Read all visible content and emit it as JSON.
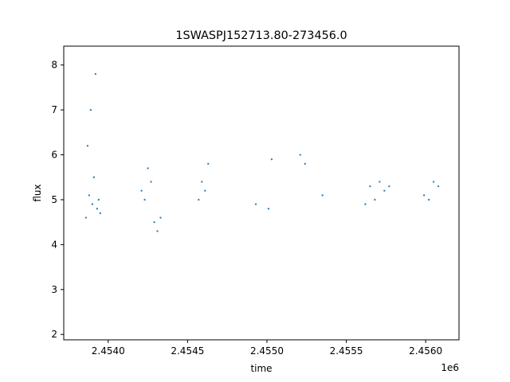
{
  "chart_data": {
    "type": "scatter",
    "title": "1SWASPJ152713.80-273456.0",
    "xlabel": "time",
    "ylabel": "flux",
    "x_offset_label": "1e6",
    "xlim": [
      2.45372,
      2.45621
    ],
    "ylim": [
      1.88,
      8.42
    ],
    "x_ticks": [
      2.454,
      2.4545,
      2.455,
      2.4555,
      2.456
    ],
    "x_tick_labels": [
      "2.4540",
      "2.4545",
      "2.4550",
      "2.4555",
      "2.4560"
    ],
    "y_ticks": [
      2,
      3,
      4,
      5,
      6,
      7,
      8
    ],
    "y_tick_labels": [
      "2",
      "3",
      "4",
      "5",
      "6",
      "7",
      "8"
    ],
    "grid": false,
    "marker_color": "#1f77b4",
    "series": [
      {
        "x": [
          2.45386,
          2.45387,
          2.45388,
          2.45389,
          2.4539,
          2.45391,
          2.45392,
          2.45393,
          2.45394,
          2.45395,
          2.45421,
          2.45423,
          2.45425,
          2.45427,
          2.45429,
          2.45431,
          2.45433,
          2.45457,
          2.45459,
          2.45461,
          2.45463,
          2.45493,
          2.45501,
          2.45503,
          2.45521,
          2.45524,
          2.45535,
          2.45562,
          2.45565,
          2.45568,
          2.45571,
          2.45574,
          2.45577,
          2.45599,
          2.45602,
          2.45605,
          2.45608
        ],
        "y": [
          4.6,
          6.2,
          5.1,
          7.0,
          4.9,
          5.5,
          7.8,
          4.8,
          5.0,
          4.7,
          5.2,
          5.0,
          5.7,
          5.4,
          4.5,
          4.3,
          4.6,
          5.0,
          5.4,
          5.2,
          5.8,
          4.9,
          4.8,
          5.9,
          6.0,
          5.8,
          5.1,
          4.9,
          5.3,
          5.0,
          5.4,
          5.2,
          5.3,
          5.1,
          5.0,
          5.4,
          5.3
        ]
      }
    ]
  }
}
